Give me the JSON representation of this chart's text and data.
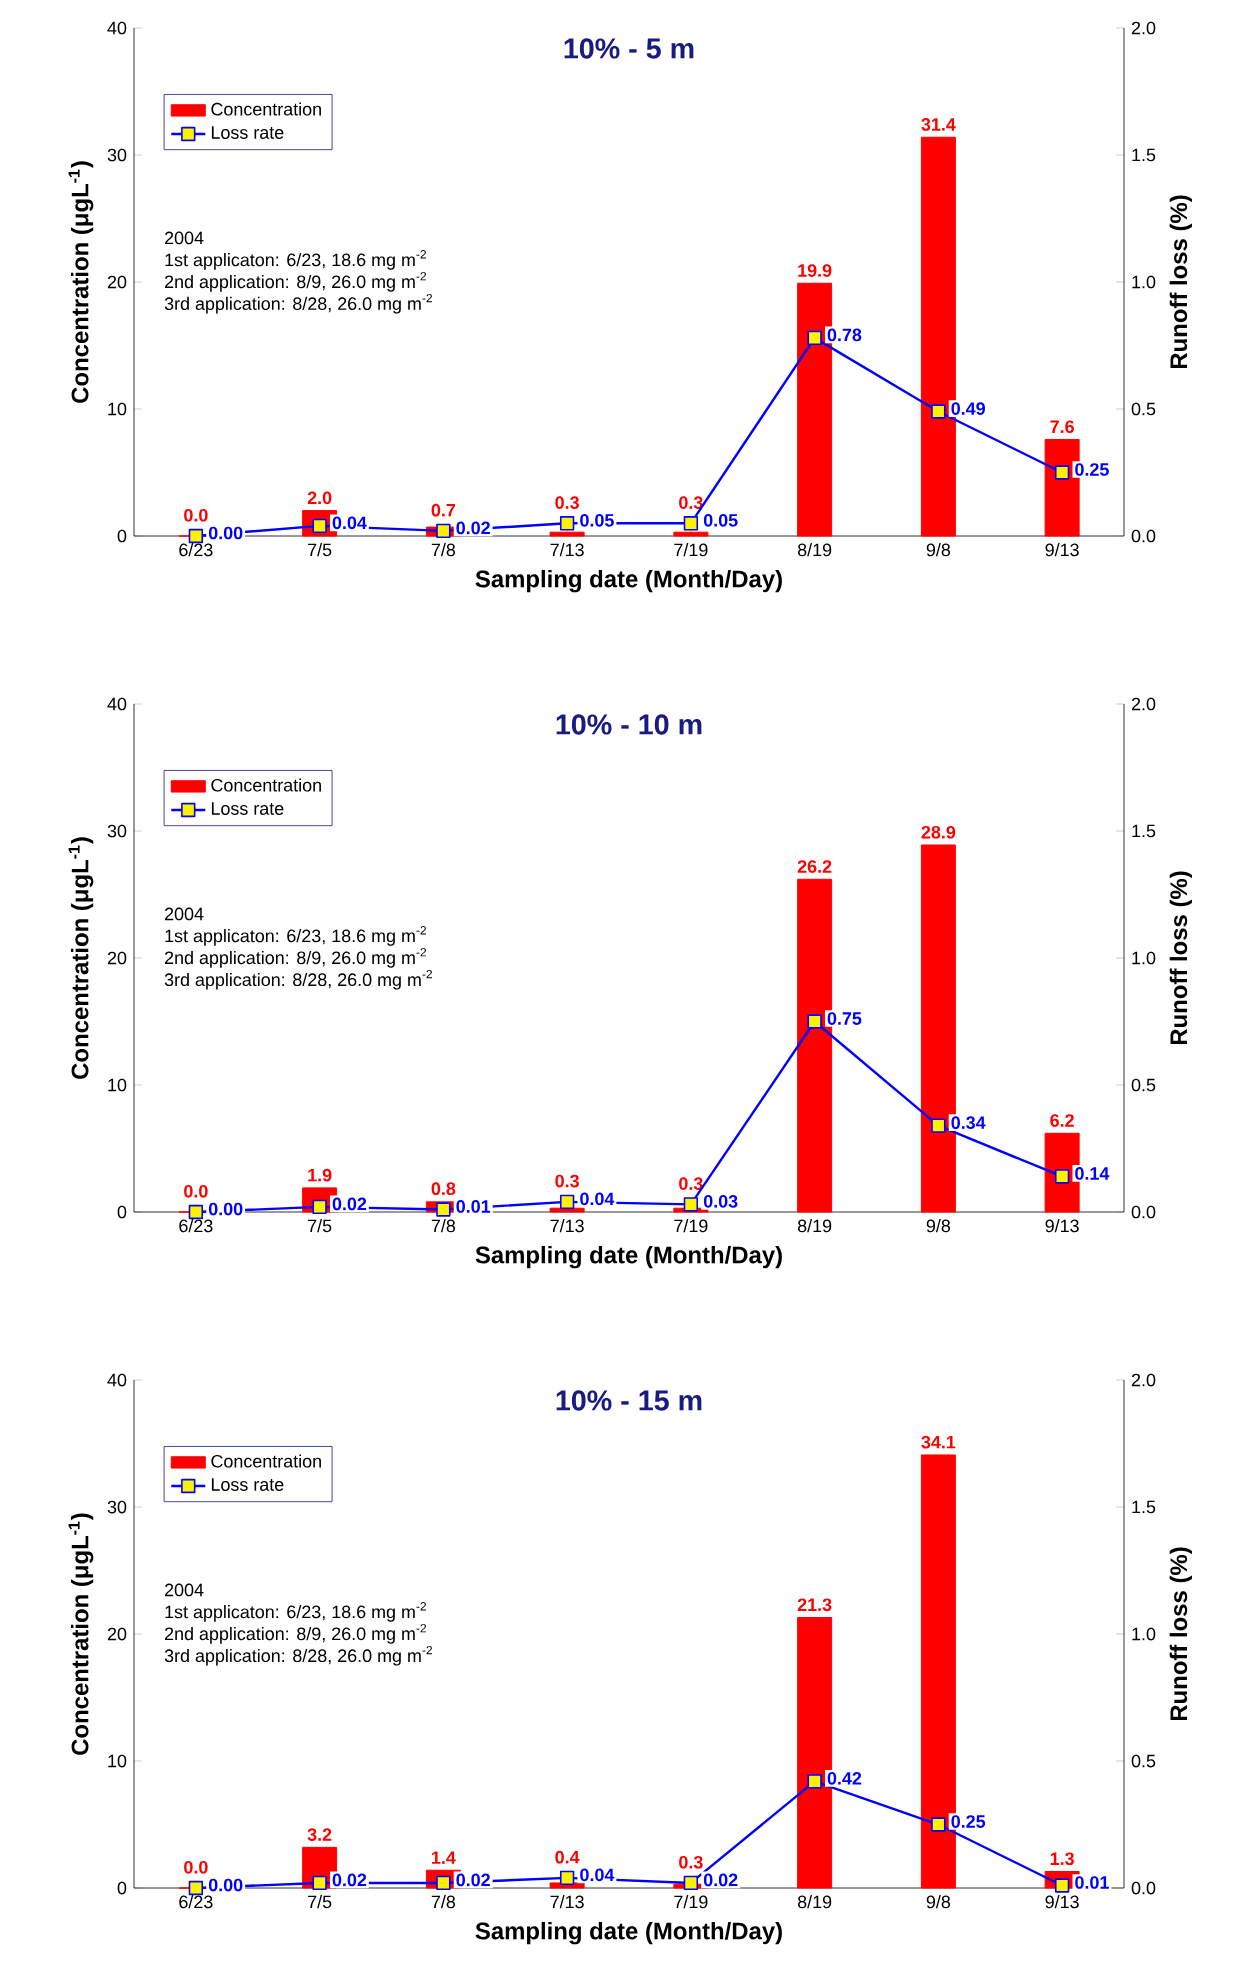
{
  "chart_data": [
    {
      "type": "bar",
      "title": "10% - 5 m",
      "xlabel": "Sampling date (Month/Day)",
      "ylabel": "Concentration (μgL$^{-1}$)",
      "y2label": "Runoff loss (%)",
      "categories": [
        "6/23",
        "7/5",
        "7/8",
        "7/13",
        "7/19",
        "8/19",
        "9/8",
        "9/13"
      ],
      "series": [
        {
          "name": "Concentration",
          "color": "#ff0000",
          "values": [
            0.0,
            2.0,
            0.7,
            0.3,
            0.3,
            19.9,
            31.4,
            7.6
          ],
          "value_labels": [
            "0.0",
            "2.0",
            "0.7",
            "0.3",
            "0.3",
            "19.9",
            "31.4",
            "7.6"
          ]
        },
        {
          "name": "Loss rate",
          "type": "line",
          "axis": "y2",
          "color": "#0000ff",
          "marker": "square",
          "values": [
            0.0,
            0.04,
            0.02,
            0.05,
            0.05,
            0.78,
            0.49,
            0.25
          ],
          "value_labels": [
            "0.00",
            "0.04",
            "0.02",
            "0.05",
            "0.05",
            "0.78",
            "0.49",
            "0.25"
          ]
        }
      ],
      "ylim": [
        0,
        40
      ],
      "yticks": [
        0,
        10,
        20,
        30,
        40
      ],
      "y2lim": [
        0,
        2
      ],
      "y2ticks": [
        {
          "value": 0,
          "label": "0.0"
        },
        {
          "value": 0.5,
          "label": "0.5"
        },
        {
          "value": 1,
          "label": "1.0"
        },
        {
          "value": 1.5,
          "label": "1.5"
        },
        {
          "value": 2,
          "label": "2.0"
        }
      ],
      "legend": "top left",
      "annotations": [
        "2004",
        "1st applicaton: 6/23, 18.6 mg m$^{-2}$",
        "2nd application: 8/9, 26.0 mg m$^{-2}$",
        "3rd application: 8/28, 26.0 mg m$^{-2}$"
      ]
    },
    {
      "type": "bar",
      "title": "10% - 10 m",
      "xlabel": "Sampling date (Month/Day)",
      "ylabel": "Concentration (μgL$^{-1}$)",
      "y2label": "Runoff loss (%)",
      "categories": [
        "6/23",
        "7/5",
        "7/8",
        "7/13",
        "7/19",
        "8/19",
        "9/8",
        "9/13"
      ],
      "series": [
        {
          "name": "Concentration",
          "color": "#ff0000",
          "values": [
            0.0,
            1.9,
            0.8,
            0.3,
            0.3,
            26.2,
            28.9,
            6.2
          ],
          "value_labels": [
            "0.0",
            "1.9",
            "0.8",
            "0.3",
            "0.3",
            "26.2",
            "28.9",
            "6.2"
          ]
        },
        {
          "name": "Loss rate",
          "type": "line",
          "axis": "y2",
          "color": "#0000ff",
          "marker": "square",
          "values": [
            0.0,
            0.02,
            0.01,
            0.04,
            0.03,
            0.75,
            0.34,
            0.14
          ],
          "value_labels": [
            "0.00",
            "0.02",
            "0.01",
            "0.04",
            "0.03",
            "0.75",
            "0.34",
            "0.14"
          ]
        }
      ],
      "ylim": [
        0,
        40
      ],
      "yticks": [
        0,
        10,
        20,
        30,
        40
      ],
      "y2lim": [
        0,
        2
      ],
      "y2ticks": [
        {
          "value": 0,
          "label": "0.0"
        },
        {
          "value": 0.5,
          "label": "0.5"
        },
        {
          "value": 1,
          "label": "1.0"
        },
        {
          "value": 1.5,
          "label": "1.5"
        },
        {
          "value": 2,
          "label": "2.0"
        }
      ],
      "legend": "top left",
      "annotations": [
        "2004",
        "1st applicaton: 6/23, 18.6 mg m$^{-2}$",
        "2nd application: 8/9, 26.0 mg m$^{-2}$",
        "3rd application: 8/28, 26.0 mg m$^{-2}$"
      ]
    },
    {
      "type": "bar",
      "title": "10% - 15 m",
      "xlabel": "Sampling date (Month/Day)",
      "ylabel": "Concentration (μgL$^{-1}$)",
      "y2label": "Runoff loss (%)",
      "categories": [
        "6/23",
        "7/5",
        "7/8",
        "7/13",
        "7/19",
        "8/19",
        "9/8",
        "9/13"
      ],
      "series": [
        {
          "name": "Concentration",
          "color": "#ff0000",
          "values": [
            0.0,
            3.2,
            1.4,
            0.4,
            0.3,
            21.3,
            34.1,
            1.3
          ],
          "value_labels": [
            "0.0",
            "3.2",
            "1.4",
            "0.4",
            "0.3",
            "21.3",
            "34.1",
            "1.3"
          ]
        },
        {
          "name": "Loss rate",
          "type": "line",
          "axis": "y2",
          "color": "#0000ff",
          "marker": "square",
          "values": [
            0.0,
            0.02,
            0.02,
            0.04,
            0.02,
            0.42,
            0.25,
            0.01
          ],
          "value_labels": [
            "0.00",
            "0.02",
            "0.02",
            "0.04",
            "0.02",
            "0.42",
            "0.25",
            "0.01"
          ]
        }
      ],
      "ylim": [
        0,
        40
      ],
      "yticks": [
        0,
        10,
        20,
        30,
        40
      ],
      "y2lim": [
        0,
        2
      ],
      "y2ticks": [
        {
          "value": 0,
          "label": "0.0"
        },
        {
          "value": 0.5,
          "label": "0.5"
        },
        {
          "value": 1,
          "label": "1.0"
        },
        {
          "value": 1.5,
          "label": "1.5"
        },
        {
          "value": 2,
          "label": "2.0"
        }
      ],
      "legend": "top left",
      "annotations": [
        "2004",
        "1st applicaton: 6/23, 18.6 mg m$^{-2}$",
        "2nd application: 8/9, 26.0 mg m$^{-2}$",
        "3rd application: 8/28, 26.0 mg m$^{-2}$"
      ]
    }
  ]
}
